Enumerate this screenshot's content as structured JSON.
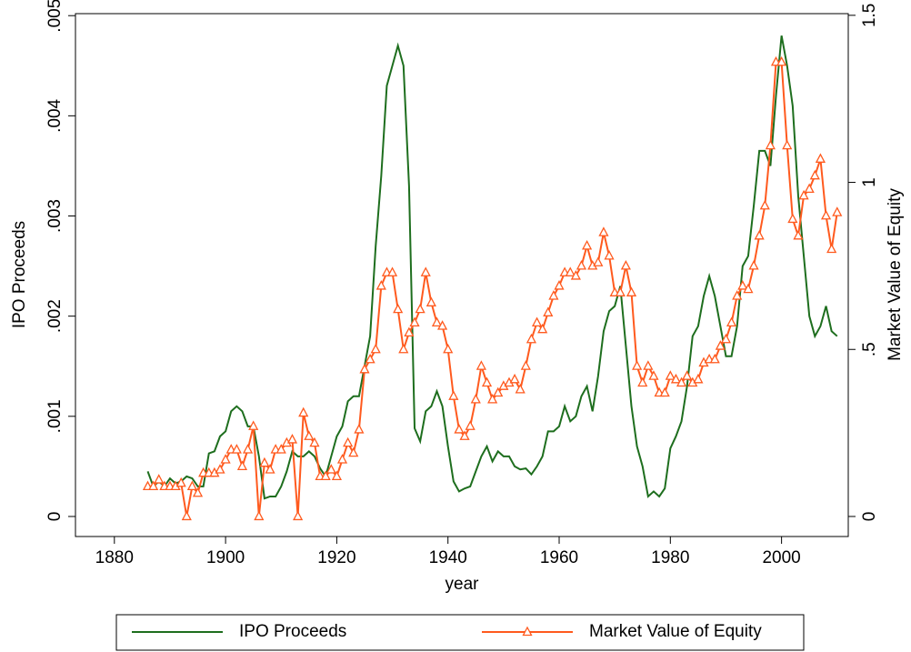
{
  "chart_data": {
    "type": "line",
    "xlabel": "year",
    "ylabel": "IPO Proceeds",
    "y2label": "Market Value of Equity",
    "x": [
      1886,
      1887,
      1888,
      1889,
      1890,
      1891,
      1892,
      1893,
      1894,
      1895,
      1896,
      1897,
      1898,
      1899,
      1900,
      1901,
      1902,
      1903,
      1904,
      1905,
      1906,
      1907,
      1908,
      1909,
      1910,
      1911,
      1912,
      1913,
      1914,
      1915,
      1916,
      1917,
      1918,
      1919,
      1920,
      1921,
      1922,
      1923,
      1924,
      1925,
      1926,
      1927,
      1928,
      1929,
      1930,
      1931,
      1932,
      1933,
      1934,
      1935,
      1936,
      1937,
      1938,
      1939,
      1940,
      1941,
      1942,
      1943,
      1944,
      1945,
      1946,
      1947,
      1948,
      1949,
      1950,
      1951,
      1952,
      1953,
      1954,
      1955,
      1956,
      1957,
      1958,
      1959,
      1960,
      1961,
      1962,
      1963,
      1964,
      1965,
      1966,
      1967,
      1968,
      1969,
      1970,
      1971,
      1972,
      1973,
      1974,
      1975,
      1976,
      1977,
      1978,
      1979,
      1980,
      1981,
      1982,
      1983,
      1984,
      1985,
      1986,
      1987,
      1988,
      1989,
      1990,
      1991,
      1992,
      1993,
      1994,
      1995,
      1996,
      1997,
      1998,
      1999,
      2000,
      2001,
      2002,
      2003,
      2004,
      2005,
      2006,
      2007,
      2008,
      2009,
      2010
    ],
    "series": [
      {
        "name": "IPO Proceeds",
        "color": "#1e6e1e",
        "marker": false,
        "values": [
          0.00045,
          0.0003,
          0.00035,
          0.0003,
          0.00038,
          0.00033,
          0.00035,
          0.0004,
          0.00038,
          0.0003,
          0.0003,
          0.00063,
          0.00065,
          0.0008,
          0.00085,
          0.00105,
          0.0011,
          0.00105,
          0.0009,
          0.0009,
          0.0006,
          0.00018,
          0.0002,
          0.0002,
          0.0003,
          0.00045,
          0.00065,
          0.0006,
          0.0006,
          0.00065,
          0.0006,
          0.00048,
          0.0004,
          0.0006,
          0.0008,
          0.0009,
          0.00115,
          0.0012,
          0.0012,
          0.0015,
          0.0018,
          0.0027,
          0.0034,
          0.0043,
          0.0045,
          0.0047,
          0.0045,
          0.0033,
          0.00088,
          0.00075,
          0.00105,
          0.0011,
          0.00125,
          0.0011,
          0.0007,
          0.00035,
          0.00025,
          0.00028,
          0.0003,
          0.00045,
          0.0006,
          0.0007,
          0.00055,
          0.00065,
          0.0006,
          0.0006,
          0.0005,
          0.00047,
          0.00048,
          0.00042,
          0.0005,
          0.0006,
          0.00085,
          0.00085,
          0.0009,
          0.0011,
          0.00095,
          0.001,
          0.0012,
          0.0013,
          0.00105,
          0.0014,
          0.00185,
          0.00205,
          0.0021,
          0.0023,
          0.0017,
          0.0011,
          0.0007,
          0.0005,
          0.0002,
          0.00025,
          0.0002,
          0.00028,
          0.00068,
          0.0008,
          0.00095,
          0.0013,
          0.0018,
          0.0019,
          0.0022,
          0.0024,
          0.0022,
          0.0019,
          0.0016,
          0.0016,
          0.0019,
          0.0025,
          0.0026,
          0.0031,
          0.00365,
          0.00365,
          0.0035,
          0.0042,
          0.0048,
          0.0045,
          0.0041,
          0.0032,
          0.0026,
          0.002,
          0.0018,
          0.0019,
          0.0021,
          0.00185,
          0.0018
        ]
      },
      {
        "name": "Market Value of Equity",
        "color": "#ff5a1e",
        "marker": true,
        "axis": "y2",
        "values": [
          0.09,
          0.09,
          0.11,
          0.09,
          0.09,
          0.09,
          0.1,
          0,
          0.09,
          0.07,
          0.13,
          0.13,
          0.13,
          0.14,
          0.17,
          0.2,
          0.2,
          0.15,
          0.2,
          0.27,
          0,
          0.16,
          0.14,
          0.2,
          0.2,
          0.22,
          0.23,
          0,
          0.31,
          0.24,
          0.22,
          0.12,
          0.12,
          0.14,
          0.12,
          0.17,
          0.22,
          0.19,
          0.26,
          0.44,
          0.47,
          0.5,
          0.69,
          0.73,
          0.73,
          0.62,
          0.5,
          0.55,
          0.58,
          0.62,
          0.73,
          0.64,
          0.58,
          0.57,
          0.5,
          0.36,
          0.26,
          0.24,
          0.27,
          0.35,
          0.45,
          0.4,
          0.35,
          0.37,
          0.39,
          0.4,
          0.41,
          0.38,
          0.45,
          0.53,
          0.58,
          0.56,
          0.61,
          0.66,
          0.69,
          0.73,
          0.73,
          0.72,
          0.75,
          0.81,
          0.75,
          0.76,
          0.85,
          0.78,
          0.67,
          0.67,
          0.75,
          0.67,
          0.45,
          0.4,
          0.45,
          0.42,
          0.37,
          0.37,
          0.42,
          0.41,
          0.4,
          0.42,
          0.4,
          0.41,
          0.46,
          0.47,
          0.47,
          0.51,
          0.53,
          0.58,
          0.66,
          0.69,
          0.68,
          0.75,
          0.84,
          0.93,
          1.11,
          1.36,
          1.36,
          1.11,
          0.89,
          0.84,
          0.96,
          0.98,
          1.02,
          1.07,
          0.9,
          0.8,
          0.91
        ]
      }
    ],
    "xlim": [
      1873,
      2012
    ],
    "xticks": [
      1880,
      1900,
      1920,
      1940,
      1960,
      1980,
      2000
    ],
    "ylim": [
      -0.0002,
      0.00502
    ],
    "yticks": [
      0,
      {
        "value": 0.001,
        "label": ".001"
      },
      {
        "value": 0.002,
        "label": ".002"
      },
      {
        "value": 0.003,
        "label": ".003"
      },
      {
        "value": 0.004,
        "label": ".004"
      },
      {
        "value": 0.005,
        "label": ".005"
      }
    ],
    "y2lim": [
      -0.06,
      1.505
    ],
    "y2ticks": [
      0,
      {
        "value": 0.5,
        "label": ".5"
      },
      1,
      {
        "value": 1.5,
        "label": "1.5"
      }
    ]
  }
}
